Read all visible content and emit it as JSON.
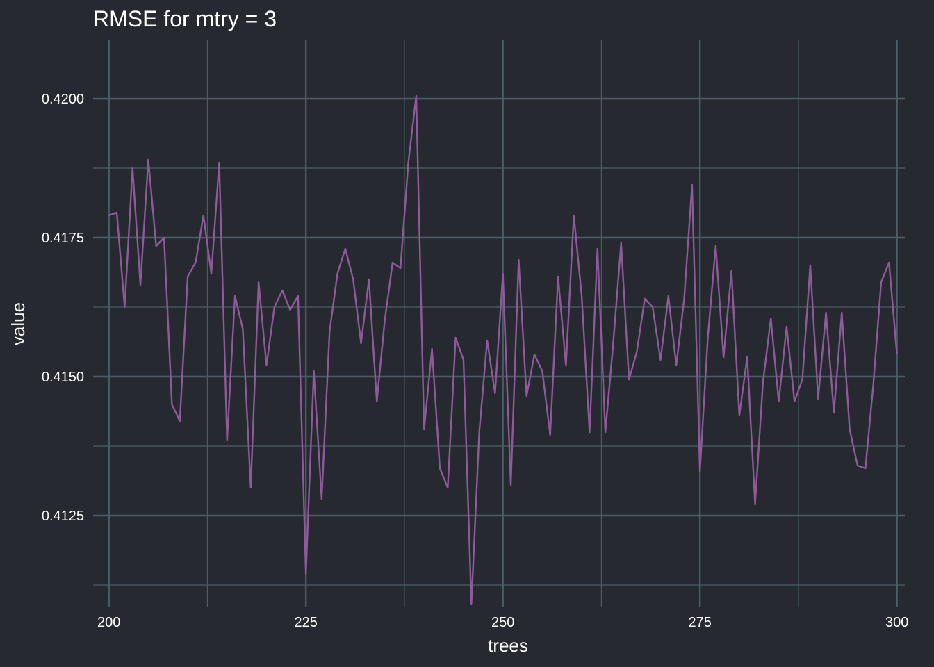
{
  "chart_data": {
    "type": "line",
    "title": "RMSE for mtry = 3",
    "xlabel": "trees",
    "ylabel": "value",
    "xlim": [
      198,
      301
    ],
    "ylim": [
      0.41085,
      0.42105
    ],
    "x_ticks": [
      200,
      225,
      250,
      275,
      300
    ],
    "x_tick_labels": [
      "200",
      "225",
      "250",
      "275",
      "300"
    ],
    "y_ticks": [
      0.4125,
      0.415,
      0.4175,
      0.42
    ],
    "y_tick_labels": [
      "0.4125",
      "0.4150",
      "0.4175",
      "0.4200"
    ],
    "grid": true,
    "legend": "none",
    "colors": {
      "background": "#262a30",
      "grid": "#4a5d66",
      "line": "#8e5a9a",
      "text": "#ffffff"
    },
    "series": [
      {
        "x": [
          200,
          201,
          202,
          203,
          204,
          205,
          206,
          207,
          208,
          209,
          210,
          211,
          212,
          213,
          214,
          215,
          216,
          217,
          218,
          219,
          220,
          221,
          222,
          223,
          224,
          225,
          226,
          227,
          228,
          229,
          230,
          231,
          232,
          233,
          234,
          235,
          236,
          237,
          238,
          239,
          240,
          241,
          242,
          243,
          244,
          245,
          246,
          247,
          248,
          249,
          250,
          251,
          252,
          253,
          254,
          255,
          256,
          257,
          258,
          259,
          260,
          261,
          262,
          263,
          264,
          265,
          266,
          267,
          268,
          269,
          270,
          271,
          272,
          273,
          274,
          275,
          276,
          277,
          278,
          279,
          280,
          281,
          282,
          283,
          284,
          285,
          286,
          287,
          288,
          289,
          290,
          291,
          292,
          293,
          294,
          295,
          296,
          297,
          298,
          299,
          300
        ],
        "values": [
          0.4179,
          0.41795,
          0.41625,
          0.41875,
          0.41665,
          0.4189,
          0.41735,
          0.4175,
          0.4145,
          0.4142,
          0.4168,
          0.41705,
          0.4179,
          0.41685,
          0.41885,
          0.41385,
          0.41645,
          0.41585,
          0.413,
          0.4167,
          0.4152,
          0.41625,
          0.41655,
          0.4162,
          0.41645,
          0.41145,
          0.4151,
          0.4128,
          0.4158,
          0.41685,
          0.4173,
          0.41675,
          0.4156,
          0.41675,
          0.41455,
          0.416,
          0.41705,
          0.41695,
          0.41885,
          0.42005,
          0.41405,
          0.4155,
          0.41335,
          0.413,
          0.4157,
          0.4153,
          0.4109,
          0.414,
          0.41565,
          0.4147,
          0.41685,
          0.41305,
          0.4171,
          0.41465,
          0.4154,
          0.4151,
          0.41395,
          0.4168,
          0.4152,
          0.4179,
          0.41645,
          0.414,
          0.4173,
          0.414,
          0.4156,
          0.4174,
          0.41495,
          0.41545,
          0.4164,
          0.41625,
          0.4153,
          0.41645,
          0.4152,
          0.4164,
          0.41845,
          0.4133,
          0.4157,
          0.41735,
          0.41535,
          0.4169,
          0.4143,
          0.41535,
          0.4127,
          0.4149,
          0.41605,
          0.41455,
          0.4159,
          0.41455,
          0.41495,
          0.417,
          0.4146,
          0.41615,
          0.41435,
          0.41615,
          0.41405,
          0.4134,
          0.41335,
          0.41485,
          0.4167,
          0.41705,
          0.4154
        ]
      }
    ]
  }
}
